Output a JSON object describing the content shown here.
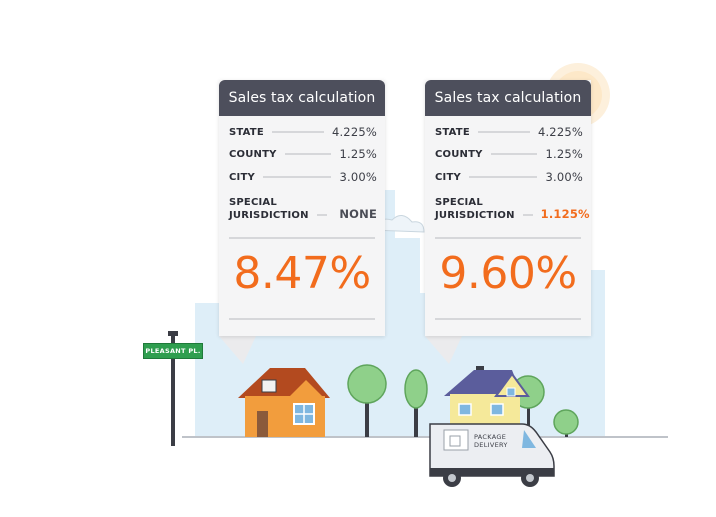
{
  "cards": [
    {
      "title": "Sales tax calculation",
      "rows": [
        {
          "label": "STATE",
          "value": "4.225%"
        },
        {
          "label": "COUNTY",
          "value": "1.25%"
        },
        {
          "label": "CITY",
          "value": "3.00%"
        }
      ],
      "special": {
        "label_line1": "SPECIAL",
        "label_line2": "JURISDICTION",
        "value": "NONE"
      },
      "total": "8.47%"
    },
    {
      "title": "Sales tax calculation",
      "rows": [
        {
          "label": "STATE",
          "value": "4.225%"
        },
        {
          "label": "COUNTY",
          "value": "1.25%"
        },
        {
          "label": "CITY",
          "value": "3.00%"
        }
      ],
      "special": {
        "label_line1": "SPECIAL",
        "label_line2": "JURISDICTION",
        "value": "1.125%"
      },
      "total": "9.60%"
    }
  ],
  "street_sign": "PLEASANT PL.",
  "van_label_line1": "PACKAGE",
  "van_label_line2": "DELIVERY",
  "colors": {
    "accent": "#f26c1d",
    "header": "#4d4f5c",
    "sign_green": "#2f9e4f",
    "sky": "#deeef8"
  }
}
